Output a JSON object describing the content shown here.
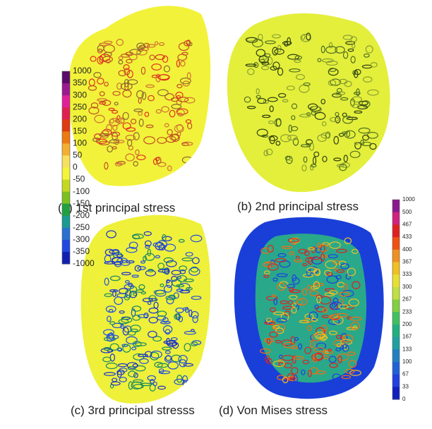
{
  "panels": [
    {
      "caption": "(a) 1st principal stress"
    },
    {
      "caption": "(b) 2nd principal stress"
    },
    {
      "caption": "(c) 3rd principal stresss"
    },
    {
      "caption": "(d) Von Mises stress"
    }
  ],
  "left_colorbar": {
    "labels": [
      "1000",
      "350",
      "300",
      "250",
      "200",
      "150",
      "100",
      "50",
      "0",
      "-50",
      "-100",
      "-150",
      "-200",
      "-250",
      "-300",
      "-350",
      "-1000"
    ]
  },
  "right_colorbar": {
    "labels": [
      "1000",
      "500",
      "467",
      "433",
      "400",
      "367",
      "333",
      "300",
      "267",
      "233",
      "200",
      "167",
      "133",
      "100",
      "67",
      "33",
      "0"
    ]
  }
}
